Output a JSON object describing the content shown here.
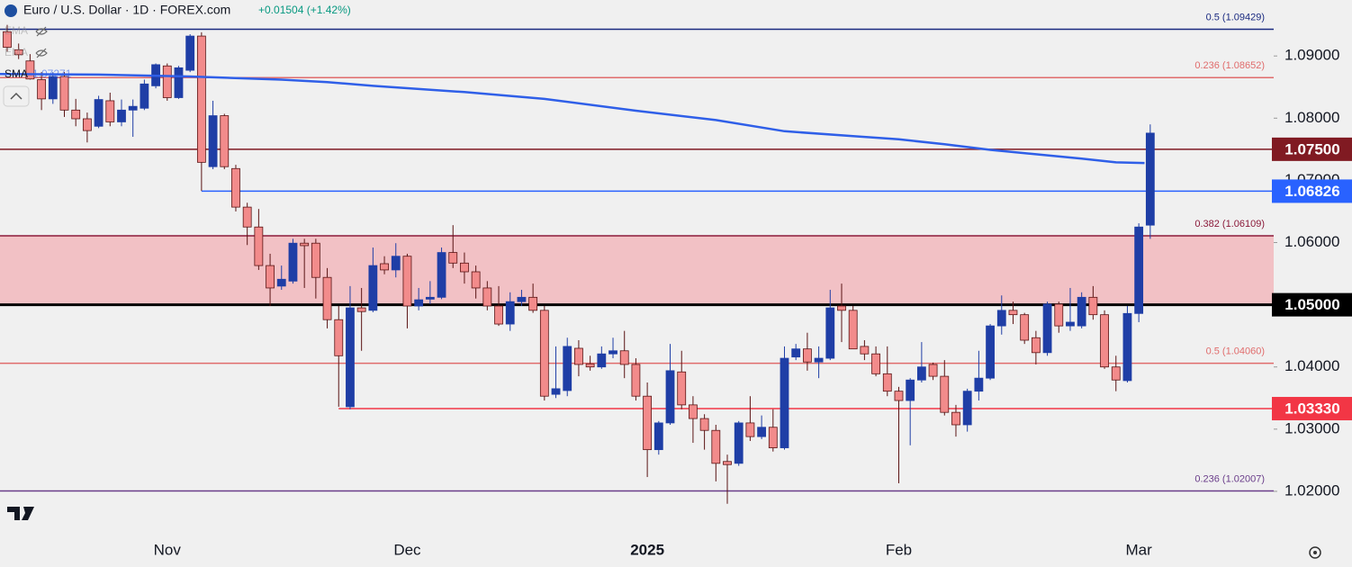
{
  "chart_data": {
    "type": "candlestick",
    "title": "Euro / U.S. Dollar · 1D · FOREX.com",
    "change": "+0.01504 (+1.42%)",
    "indicators": [
      {
        "name": "EMA",
        "hidden": true
      },
      {
        "name": "EMA",
        "hidden": true
      }
    ],
    "categories": [
      null,
      null,
      null,
      null,
      null,
      null,
      null,
      null,
      null,
      null,
      null,
      null,
      null,
      null,
      "Nov",
      null,
      null,
      null,
      null,
      null,
      null,
      null,
      null,
      null,
      null,
      null,
      null,
      null,
      null,
      null,
      null,
      null,
      null,
      null,
      null,
      "Dec",
      null,
      null,
      null,
      null,
      null,
      null,
      null,
      null,
      null,
      null,
      null,
      null,
      null,
      null,
      null,
      null,
      null,
      null,
      null,
      null,
      "2025",
      null,
      null,
      null,
      null,
      null,
      null,
      null,
      null,
      null,
      null,
      null,
      null,
      null,
      null,
      null,
      null,
      null,
      null,
      null,
      null,
      null,
      "Feb",
      null,
      null,
      null,
      null,
      null,
      null,
      null,
      null,
      null,
      null,
      null,
      null,
      null,
      null,
      null,
      null,
      null,
      null,
      null,
      null,
      "Mar",
      null
    ],
    "xlim": [
      -0.63,
      110.8
    ],
    "ylim": [
      1.0129,
      1.099
    ],
    "yticks": [
      {
        "value": 1.02,
        "label": "1.02000"
      },
      {
        "value": 1.03,
        "label": "1.03000"
      },
      {
        "value": 1.04,
        "label": "1.04000"
      },
      {
        "value": 1.05,
        "label": "1.05000"
      },
      {
        "value": 1.06,
        "label": "1.06000"
      },
      {
        "value": 1.07,
        "label": "1.07000"
      },
      {
        "value": 1.08,
        "label": "1.08000"
      },
      {
        "value": 1.09,
        "label": "1.09000"
      }
    ],
    "up_color": "#1f3ea6",
    "down_color": "#f28b8b",
    "open": [
      1.0939,
      1.091,
      1.0892,
      1.0862,
      1.0831,
      1.0867,
      1.0813,
      1.0799,
      1.0787,
      1.0828,
      1.0794,
      1.0813,
      1.0816,
      1.0852,
      1.0884,
      1.0833,
      1.0877,
      1.0932,
      1.0722,
      1.0804,
      1.0719,
      1.0657,
      1.0625,
      1.0563,
      1.053,
      1.0538,
      1.0599,
      1.0599,
      1.0544,
      1.0476,
      1.0336,
      1.0495,
      1.0491,
      1.0566,
      1.0556,
      1.0578,
      1.0498,
      1.0509,
      1.0512,
      1.0584,
      1.0567,
      1.0553,
      1.0527,
      1.0498,
      1.0469,
      1.0505,
      1.0512,
      1.0491,
      1.0356,
      1.0362,
      1.043,
      1.0405,
      1.04,
      1.0421,
      1.0426,
      1.0404,
      1.0353,
      1.0267,
      1.031,
      1.0392,
      1.0339,
      1.0317,
      1.0298,
      1.0248,
      1.0245,
      1.031,
      1.0288,
      1.0303,
      1.027,
      1.0416,
      1.0429,
      1.0408,
      1.0414,
      1.0498,
      1.0491,
      1.0433,
      1.0421,
      1.0389,
      1.0361,
      1.0346,
      1.0379,
      1.0404,
      1.0385,
      1.0327,
      1.0307,
      1.0361,
      1.0382,
      1.0466,
      1.0491,
      1.0484,
      1.0447,
      1.0423,
      1.0501,
      1.0466,
      1.0466,
      1.0512,
      1.0484,
      1.04,
      1.0378,
      1.0486,
      1.0628
    ],
    "high": [
      1.095,
      1.092,
      1.0903,
      1.0874,
      1.0874,
      1.0874,
      1.0831,
      1.0809,
      1.0836,
      1.0841,
      1.083,
      1.083,
      1.0862,
      1.0888,
      1.0888,
      1.0884,
      1.0935,
      1.0938,
      1.0828,
      1.0807,
      1.0725,
      1.0664,
      1.0654,
      1.0582,
      1.0563,
      1.0606,
      1.0606,
      1.0606,
      1.0559,
      1.0498,
      1.053,
      1.0527,
      1.0592,
      1.0578,
      1.0599,
      1.0582,
      1.0527,
      1.0538,
      1.0592,
      1.0628,
      1.0584,
      1.0563,
      1.0538,
      1.053,
      1.052,
      1.0524,
      1.0534,
      1.0498,
      1.0433,
      1.0447,
      1.0443,
      1.0418,
      1.0433,
      1.0447,
      1.0458,
      1.0414,
      1.0375,
      1.0313,
      1.0437,
      1.0426,
      1.0353,
      1.0324,
      1.0307,
      1.0259,
      1.0313,
      1.0353,
      1.0322,
      1.0332,
      1.0433,
      1.0437,
      1.0455,
      1.0433,
      1.0524,
      1.0534,
      1.0498,
      1.0443,
      1.0433,
      1.0433,
      1.0368,
      1.0382,
      1.044,
      1.0407,
      1.0411,
      1.0339,
      1.0365,
      1.0426,
      1.0469,
      1.0515,
      1.0505,
      1.0487,
      1.0458,
      1.0505,
      1.0505,
      1.0527,
      1.052,
      1.053,
      1.0491,
      1.0418,
      1.0498,
      1.0631,
      1.079
    ],
    "low": [
      1.0907,
      1.0895,
      1.0862,
      1.0813,
      1.0823,
      1.0802,
      1.0787,
      1.0761,
      1.0784,
      1.0787,
      1.0787,
      1.077,
      1.0813,
      1.0848,
      1.0828,
      1.0831,
      1.0874,
      1.0683,
      1.0718,
      1.0718,
      1.065,
      1.0596,
      1.0556,
      1.0498,
      1.0524,
      1.0534,
      1.0527,
      1.051,
      1.0462,
      1.0336,
      1.0332,
      1.0426,
      1.0488,
      1.0549,
      1.0544,
      1.0462,
      1.0491,
      1.0501,
      1.0509,
      1.0559,
      1.0534,
      1.051,
      1.0491,
      1.0466,
      1.0458,
      1.0498,
      1.0487,
      1.0346,
      1.035,
      1.0353,
      1.0385,
      1.0394,
      1.0397,
      1.0414,
      1.0382,
      1.0346,
      1.0223,
      1.0259,
      1.0307,
      1.0332,
      1.0278,
      1.0267,
      1.0216,
      1.018,
      1.0241,
      1.0281,
      1.0284,
      1.0264,
      1.0267,
      1.0411,
      1.0394,
      1.0382,
      1.0411,
      1.044,
      1.0429,
      1.0411,
      1.0385,
      1.0353,
      1.0213,
      1.0274,
      1.0375,
      1.0379,
      1.0322,
      1.0288,
      1.0296,
      1.0346,
      1.0379,
      1.0452,
      1.0469,
      1.0437,
      1.0404,
      1.0418,
      1.0455,
      1.0458,
      1.0462,
      1.0476,
      1.0397,
      1.0361,
      1.0375,
      1.0472,
      1.0606
    ],
    "close": [
      1.0914,
      1.0902,
      1.0863,
      1.0831,
      1.0867,
      1.0813,
      1.0799,
      1.078,
      1.083,
      1.0794,
      1.0813,
      1.0819,
      1.0855,
      1.0886,
      1.0833,
      1.0881,
      1.0932,
      1.0729,
      1.0804,
      1.0722,
      1.0657,
      1.0625,
      1.0563,
      1.0527,
      1.0541,
      1.0599,
      1.0595,
      1.0544,
      1.0476,
      1.0418,
      1.0495,
      1.0489,
      1.0563,
      1.0556,
      1.0578,
      1.0498,
      1.0508,
      1.0512,
      1.0584,
      1.0567,
      1.0553,
      1.0527,
      1.0498,
      1.0469,
      1.0505,
      1.0512,
      1.0491,
      1.0353,
      1.0365,
      1.0433,
      1.0404,
      1.04,
      1.0421,
      1.0426,
      1.0404,
      1.0353,
      1.0267,
      1.031,
      1.0394,
      1.0339,
      1.0317,
      1.0298,
      1.0245,
      1.0243,
      1.031,
      1.0288,
      1.0303,
      1.027,
      1.0414,
      1.0429,
      1.0408,
      1.0414,
      1.0495,
      1.0491,
      1.0429,
      1.0421,
      1.0389,
      1.0361,
      1.0346,
      1.0379,
      1.04,
      1.0385,
      1.0327,
      1.0307,
      1.0361,
      1.0382,
      1.0466,
      1.0491,
      1.0484,
      1.0443,
      1.0423,
      1.0501,
      1.0466,
      1.0472,
      1.0512,
      1.0484,
      1.04,
      1.0379,
      1.0486,
      1.0625,
      1.0776
    ],
    "sma": {
      "name": "SMA",
      "last_label": "1.07271",
      "color": "#2f5fe8",
      "x": [
        -0.63,
        8,
        16,
        24,
        28,
        32,
        40,
        47,
        55,
        62,
        68,
        74,
        78,
        82,
        86,
        90,
        94,
        97,
        99.5
      ],
      "values": [
        1.0871,
        1.087,
        1.0867,
        1.0862,
        1.0858,
        1.0852,
        1.0842,
        1.0831,
        1.0812,
        1.0797,
        1.0779,
        1.0771,
        1.0766,
        1.0758,
        1.0749,
        1.0742,
        1.0735,
        1.0729,
        1.0728
      ]
    },
    "zone": {
      "from": 1.05,
      "to": 1.06109,
      "color": "#f2c1c5"
    },
    "levels": [
      {
        "label": "0.5 (1.09429)",
        "value": 1.09429,
        "color": "#1a2a80"
      },
      {
        "label": "0.236 (1.08652)",
        "value": 1.08652,
        "color": "#e06c6c"
      },
      {
        "label": "0.382 (1.06109)",
        "value": 1.06109,
        "color": "#8b1a3a"
      },
      {
        "label": "0.5 (1.04060)",
        "value": 1.0406,
        "color": "#e06c6c"
      },
      {
        "label": "0.236 (1.02007)",
        "value": 1.02007,
        "color": "#6a3d8a"
      }
    ],
    "tags": [
      {
        "label": "1.07500",
        "value": 1.075,
        "color": "#801a22"
      },
      {
        "label": "1.06826",
        "value": 1.06826,
        "color": "#2962ff",
        "start": 17
      },
      {
        "label": "1.05000",
        "value": 1.05,
        "color": "#000000"
      },
      {
        "label": "1.03330",
        "value": 1.0333,
        "color": "#f23645",
        "start": 29
      }
    ]
  }
}
